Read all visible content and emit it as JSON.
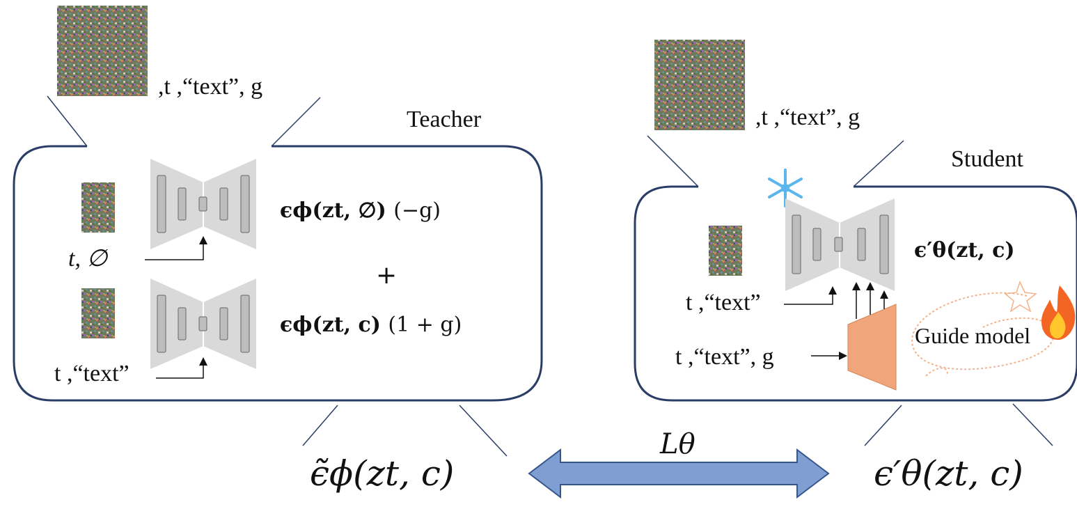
{
  "teacher": {
    "title": "Teacher",
    "input_label": ",t ,“text”, g",
    "uncond_cond": "t, ∅",
    "text_cond": "t ,“text”",
    "eps_uncond": "ϵϕ(zt, ∅)",
    "coef_uncond": "(−g)",
    "plus": "+",
    "eps_cond": "ϵϕ(zt, c)",
    "coef_cond": "(1 + g)",
    "output": "ϵ̃ϕ(zt, c)"
  },
  "student": {
    "title": "Student",
    "input_label": ",t ,“text”, g",
    "text_cond": "t ,“text”",
    "guide_cond": "t ,“text”, g",
    "eps_student": "ϵ′θ(zt, c)",
    "guide_label": "Guide model",
    "output": "ϵ′θ(zt, c)"
  },
  "loss": {
    "label": "Lθ"
  },
  "icons": {
    "frozen": "snowflake-icon",
    "trainable": "fire-icon"
  },
  "colors": {
    "outline": "#2a3d66",
    "guide_model": "#f0a67a",
    "arrow": "#7f9fd3",
    "unet": "#d9d9d9"
  }
}
